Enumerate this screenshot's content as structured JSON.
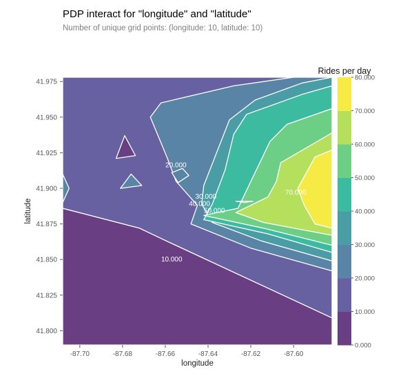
{
  "chart_data": {
    "type": "contour",
    "title": "PDP interact for \"longitude\" and \"latitude\"",
    "subtitle": "Number of unique grid points: (longitude: 10, latitude: 10)",
    "xlabel": "longitude",
    "ylabel": "latitude",
    "xlim": [
      -87.708,
      -87.582
    ],
    "ylim": [
      41.79,
      41.978
    ],
    "x_ticks": [
      "-87.70",
      "-87.68",
      "-87.66",
      "-87.64",
      "-87.62",
      "-87.60"
    ],
    "x_tick_values": [
      -87.7,
      -87.68,
      -87.66,
      -87.64,
      -87.62,
      -87.6
    ],
    "y_ticks": [
      "41.800",
      "41.825",
      "41.850",
      "41.875",
      "41.900",
      "41.925",
      "41.950",
      "41.975"
    ],
    "y_tick_values": [
      41.8,
      41.825,
      41.85,
      41.875,
      41.9,
      41.925,
      41.95,
      41.975
    ],
    "colorbar": {
      "label": "Rides per day",
      "levels": [
        0,
        10,
        20,
        30,
        40,
        50,
        60,
        70,
        80
      ],
      "tick_labels": [
        "0.000",
        "10.000",
        "20.000",
        "30.000",
        "40.000",
        "50.000",
        "60.000",
        "70.000",
        "80.000"
      ],
      "colors": [
        "#6a3e83",
        "#6761a1",
        "#5a84a6",
        "#4a9da4",
        "#3dbba0",
        "#6dcf86",
        "#b5e05e",
        "#f6ea45"
      ]
    },
    "contour_labels": [
      {
        "text": "10.000",
        "x": -87.657,
        "y": 41.85
      },
      {
        "text": "20.000",
        "x": -87.655,
        "y": 41.916
      },
      {
        "text": "30.000",
        "x": -87.641,
        "y": 41.894
      },
      {
        "text": "40.000",
        "x": -87.644,
        "y": 41.889
      },
      {
        "text": "50.000",
        "x": -87.637,
        "y": 41.884
      },
      {
        "text": "70.000",
        "x": -87.599,
        "y": 41.897
      }
    ],
    "regions": [
      {
        "level": 0,
        "points": [
          [
            -87.708,
            41.79
          ],
          [
            -87.582,
            41.79
          ],
          [
            -87.582,
            41.809
          ],
          [
            -87.658,
            41.862
          ],
          [
            -87.672,
            41.872
          ],
          [
            -87.708,
            41.886
          ]
        ]
      },
      {
        "level": 1,
        "points": [
          [
            -87.708,
            41.886
          ],
          [
            -87.672,
            41.872
          ],
          [
            -87.658,
            41.862
          ],
          [
            -87.582,
            41.809
          ],
          [
            -87.582,
            41.978
          ],
          [
            -87.708,
            41.978
          ]
        ]
      },
      {
        "level": 2,
        "points": [
          [
            -87.582,
            41.842
          ],
          [
            -87.62,
            41.858
          ],
          [
            -87.648,
            41.875
          ],
          [
            -87.645,
            41.888
          ],
          [
            -87.655,
            41.905
          ],
          [
            -87.659,
            41.921
          ],
          [
            -87.667,
            41.95
          ],
          [
            -87.662,
            41.96
          ],
          [
            -87.628,
            41.972
          ],
          [
            -87.6,
            41.978
          ],
          [
            -87.582,
            41.978
          ]
        ]
      },
      {
        "level": 3,
        "points": [
          [
            -87.582,
            41.849
          ],
          [
            -87.615,
            41.863
          ],
          [
            -87.638,
            41.876
          ],
          [
            -87.643,
            41.889
          ],
          [
            -87.642,
            41.902
          ],
          [
            -87.63,
            41.948
          ],
          [
            -87.618,
            41.962
          ],
          [
            -87.596,
            41.974
          ],
          [
            -87.582,
            41.978
          ]
        ]
      },
      {
        "level": 4,
        "points": [
          [
            -87.582,
            41.855
          ],
          [
            -87.612,
            41.868
          ],
          [
            -87.642,
            41.878
          ],
          [
            -87.638,
            41.889
          ],
          [
            -87.632,
            41.913
          ],
          [
            -87.628,
            41.938
          ],
          [
            -87.622,
            41.952
          ],
          [
            -87.596,
            41.966
          ],
          [
            -87.582,
            41.972
          ]
        ]
      },
      {
        "level": 5,
        "points": [
          [
            -87.582,
            41.86
          ],
          [
            -87.614,
            41.872
          ],
          [
            -87.642,
            41.881
          ],
          [
            -87.626,
            41.886
          ],
          [
            -87.619,
            41.908
          ],
          [
            -87.611,
            41.933
          ],
          [
            -87.603,
            41.945
          ],
          [
            -87.582,
            41.956
          ]
        ]
      },
      {
        "level": 6,
        "points": [
          [
            -87.582,
            41.867
          ],
          [
            -87.614,
            41.876
          ],
          [
            -87.627,
            41.883
          ],
          [
            -87.612,
            41.894
          ],
          [
            -87.608,
            41.905
          ],
          [
            -87.606,
            41.918
          ],
          [
            -87.582,
            41.939
          ]
        ]
      },
      {
        "level": 7,
        "points": [
          [
            -87.582,
            41.872
          ],
          [
            -87.59,
            41.875
          ],
          [
            -87.595,
            41.888
          ],
          [
            -87.598,
            41.9
          ],
          [
            -87.59,
            41.922
          ],
          [
            -87.582,
            41.927
          ]
        ]
      },
      {
        "level": 0,
        "points": [
          [
            -87.683,
            41.921
          ],
          [
            -87.674,
            41.923
          ],
          [
            -87.679,
            41.937
          ]
        ]
      },
      {
        "level": 2,
        "points": [
          [
            -87.681,
            41.9
          ],
          [
            -87.671,
            41.902
          ],
          [
            -87.676,
            41.91
          ]
        ]
      },
      {
        "level": 2,
        "points": [
          [
            -87.657,
            41.911
          ],
          [
            -87.652,
            41.914
          ],
          [
            -87.649,
            41.909
          ],
          [
            -87.654,
            41.904
          ]
        ]
      },
      {
        "level": 2,
        "points": [
          [
            -87.708,
            41.91
          ],
          [
            -87.705,
            41.9
          ],
          [
            -87.708,
            41.89
          ]
        ]
      },
      {
        "level": 5,
        "points": [
          [
            -87.627,
            41.891
          ],
          [
            -87.623,
            41.89
          ],
          [
            -87.619,
            41.891
          ]
        ]
      }
    ]
  }
}
